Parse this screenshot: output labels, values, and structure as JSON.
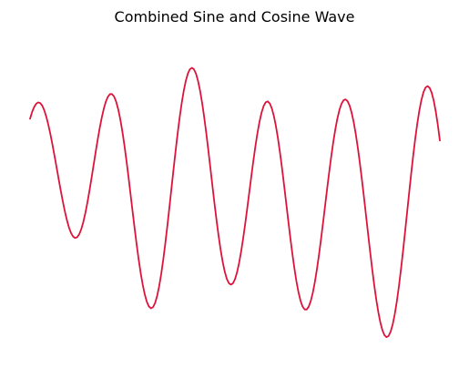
{
  "chart_data": {
    "type": "line",
    "title": "Combined Sine and Cosine Wave",
    "xlabel": "",
    "ylabel": "",
    "axes_visible": false,
    "grid": false,
    "legend": "none",
    "xlim": [
      0,
      10
    ],
    "ylim": [
      -2.2,
      2.2
    ],
    "line_color": "#dc143c",
    "function": "sin(2x) + cos(3x)",
    "series": [
      {
        "x": [
          0,
          0.05,
          0.1,
          0.15,
          0.2,
          0.25,
          0.3,
          0.35,
          0.4,
          0.45,
          0.5,
          0.55,
          0.6,
          0.65,
          0.7,
          0.75,
          0.8,
          0.85,
          0.9,
          0.95,
          1.0,
          1.05,
          1.1,
          1.15,
          1.2,
          1.25,
          1.3,
          1.35,
          1.4,
          1.45,
          1.5,
          1.55,
          1.6,
          1.65,
          1.7,
          1.75,
          1.8,
          1.85,
          1.9,
          1.95,
          2.0,
          2.05,
          2.1,
          2.15,
          2.2,
          2.25,
          2.3,
          2.35,
          2.4,
          2.45,
          2.5,
          2.55,
          2.6,
          2.65,
          2.7,
          2.75,
          2.8,
          2.85,
          2.9,
          2.95,
          3.0,
          3.05,
          3.1,
          3.15,
          3.2,
          3.25,
          3.3,
          3.35,
          3.4,
          3.45,
          3.5,
          3.55,
          3.6,
          3.65,
          3.7,
          3.75,
          3.8,
          3.85,
          3.9,
          3.95,
          4.0,
          4.05,
          4.1,
          4.15,
          4.2,
          4.25,
          4.3,
          4.35,
          4.4,
          4.45,
          4.5,
          4.55,
          4.6,
          4.65,
          4.7,
          4.75,
          4.8,
          4.85,
          4.9,
          4.95,
          5.0,
          5.05,
          5.1,
          5.15,
          5.2,
          5.25,
          5.3,
          5.35,
          5.4,
          5.45,
          5.5,
          5.55,
          5.6,
          5.65,
          5.7,
          5.75,
          5.8,
          5.85,
          5.9,
          5.95,
          6.0,
          6.05,
          6.1,
          6.15,
          6.2,
          6.25,
          6.3,
          6.35,
          6.4,
          6.45,
          6.5,
          6.55,
          6.6,
          6.65,
          6.7,
          6.75,
          6.8,
          6.85,
          6.9,
          6.95,
          7.0,
          7.05,
          7.1,
          7.15,
          7.2,
          7.25,
          7.3,
          7.35,
          7.4,
          7.45,
          7.5,
          7.55,
          7.6,
          7.65,
          7.7,
          7.75,
          7.8,
          7.85,
          7.9,
          7.95,
          8.0,
          8.05,
          8.1,
          8.15,
          8.2,
          8.25,
          8.3,
          8.35,
          8.4,
          8.45,
          8.5,
          8.55,
          8.6,
          8.65,
          8.7,
          8.75,
          8.8,
          8.85,
          8.9,
          8.95,
          9.0,
          9.05,
          9.1,
          9.15,
          9.2,
          9.25,
          9.3,
          9.35,
          9.4,
          9.45,
          9.5,
          9.55,
          9.6,
          9.65,
          9.7,
          9.75,
          9.8,
          9.85,
          9.9,
          9.95,
          10.0
        ],
        "y": [
          1.0,
          1.0886,
          1.154,
          1.1975,
          1.2146,
          1.2049,
          1.1694,
          1.1064,
          1.0192,
          0.9127,
          0.7888,
          0.6512,
          0.505,
          0.354,
          0.2023,
          0.0542,
          -0.0868,
          -0.2174,
          -0.3318,
          -0.4278,
          -0.5,
          -0.5467,
          -0.5653,
          -0.5552,
          -0.516,
          -0.449,
          -0.3554,
          -0.2364,
          -0.0981,
          0.0557,
          0.2206,
          0.39,
          0.5596,
          0.7245,
          0.8777,
          1.0151,
          1.1325,
          1.2251,
          1.2898,
          1.3232,
          1.324,
          1.2917,
          1.2257,
          1.1275,
          0.9988,
          0.8422,
          0.6613,
          0.4607,
          0.2451,
          0.0203,
          -0.2078,
          -0.4318,
          -0.6465,
          -0.8461,
          -1.0259,
          -1.1811,
          -1.308,
          -1.4035,
          -1.4642,
          -1.4888,
          -1.4734,
          -1.42,
          -1.3283,
          -1.2006,
          -1.0401,
          -0.8511,
          -0.6386,
          -0.408,
          -0.1659,
          0.0822,
          0.3296,
          0.5713,
          0.8011,
          1.0134,
          1.203,
          1.3654,
          1.4956,
          1.591,
          1.6493,
          1.668,
          1.6482,
          1.5898,
          1.4943,
          1.3648,
          1.2048,
          1.0183,
          0.8113,
          0.5881,
          0.356,
          0.1212,
          -0.1097,
          -0.3303,
          -0.5353,
          -0.7194,
          -0.877,
          -1.005,
          -1.0996,
          -1.1574,
          -1.178,
          -1.1615,
          -1.1071,
          -1.0173,
          -0.8955,
          -0.7453,
          -0.5714,
          -0.3791,
          -0.175,
          0.0357,
          0.2469,
          0.4517,
          0.6432,
          0.8157,
          0.9633,
          1.0818,
          1.1673,
          1.216,
          1.2275,
          1.2001,
          1.1353,
          1.0349,
          0.9014,
          0.7391,
          0.5519,
          0.3449,
          0.1245,
          -0.1042,
          -0.3336,
          -0.5572,
          -0.7691,
          -0.9631,
          -1.1345,
          -1.2777,
          -1.3889,
          -1.4651,
          -1.5039,
          -1.5045,
          -1.4669,
          -1.3924,
          -1.2833,
          -1.1433,
          -0.9766,
          -0.7874,
          -0.5815,
          -0.3639,
          -0.1403,
          0.0837,
          0.3013,
          0.5073,
          0.6961,
          0.8633,
          1.0046,
          1.1168,
          1.1971,
          1.2432,
          1.2541,
          1.2289,
          1.1683,
          1.074,
          0.9479,
          0.7927,
          0.612,
          0.41,
          0.1913,
          -0.0393,
          -0.2772,
          -0.517,
          -0.7524,
          -0.9785,
          -1.1892,
          -1.3795,
          -1.5441,
          -1.6788,
          -1.7794,
          -1.843,
          -1.867,
          -1.8506,
          -1.7937,
          -1.6976,
          -1.5647,
          -1.3982,
          -1.2024,
          -0.9822,
          -0.7432,
          -0.4914,
          -0.2332,
          0.0254,
          0.278,
          0.5185,
          0.7408,
          0.9394,
          1.1097,
          1.2469,
          1.3477,
          1.4088,
          1.4284,
          1.4061,
          1.3421,
          1.238,
          1.0961,
          0.9203,
          0.7145
        ]
      }
    ]
  }
}
